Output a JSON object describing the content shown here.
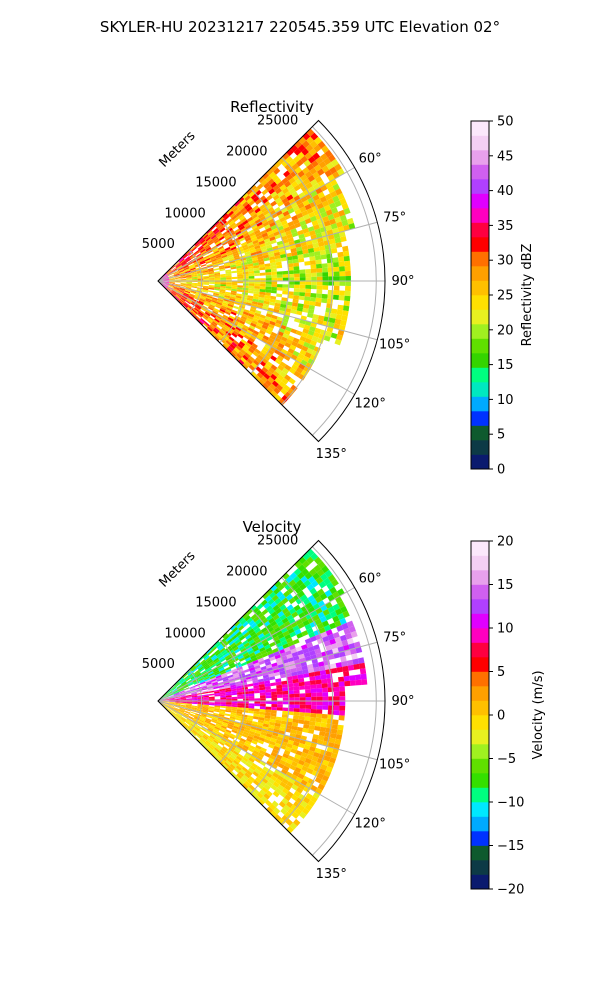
{
  "figure": {
    "suptitle": "SKYLER-HU  20231217  220545.359 UTC Elevation 02°"
  },
  "chart_data": [
    {
      "type": "heatmap",
      "title": "Reflectivity",
      "radial_label": "Meters",
      "range_ticks": [
        {
          "value": 5000,
          "label": "5000"
        },
        {
          "value": 10000,
          "label": "10000"
        },
        {
          "value": 15000,
          "label": "15000"
        },
        {
          "value": 20000,
          "label": "20000"
        },
        {
          "value": 25000,
          "label": "25000"
        }
      ],
      "range_max": 26000,
      "azimuth_range": [
        45,
        135
      ],
      "azimuth_ticks": [
        {
          "value": 60,
          "label": "60°"
        },
        {
          "value": 75,
          "label": "75°"
        },
        {
          "value": 90,
          "label": "90°"
        },
        {
          "value": 105,
          "label": "105°"
        },
        {
          "value": 120,
          "label": "120°"
        },
        {
          "value": 135,
          "label": "135°"
        }
      ],
      "colorbar": {
        "label": "Reflectivity dBZ",
        "vmin": 0,
        "vmax": 50,
        "ticks": [
          {
            "value": 0,
            "label": "0"
          },
          {
            "value": 5,
            "label": "5"
          },
          {
            "value": 10,
            "label": "10"
          },
          {
            "value": 15,
            "label": "15"
          },
          {
            "value": 20,
            "label": "20"
          },
          {
            "value": 25,
            "label": "25"
          },
          {
            "value": 30,
            "label": "30"
          },
          {
            "value": 35,
            "label": "35"
          },
          {
            "value": 40,
            "label": "40"
          },
          {
            "value": 45,
            "label": "45"
          },
          {
            "value": 50,
            "label": "50"
          }
        ],
        "colors": [
          "#0a1a6e",
          "#0c3a46",
          "#0e5a2e",
          "#0032ff",
          "#00aaff",
          "#00e8c0",
          "#00ff80",
          "#34d400",
          "#60e000",
          "#a0f020",
          "#e8f020",
          "#ffe000",
          "#ffc000",
          "#ffa000",
          "#ff7000",
          "#ff0000",
          "#ff0040",
          "#ff00c0",
          "#e000ff",
          "#b040ff",
          "#d060f0",
          "#e8a0ec",
          "#f4d0f4",
          "#fbe8fb"
        ]
      },
      "grid": true
    },
    {
      "type": "heatmap",
      "title": "Velocity",
      "radial_label": "Meters",
      "range_ticks": [
        {
          "value": 5000,
          "label": "5000"
        },
        {
          "value": 10000,
          "label": "10000"
        },
        {
          "value": 15000,
          "label": "15000"
        },
        {
          "value": 20000,
          "label": "20000"
        },
        {
          "value": 25000,
          "label": "25000"
        }
      ],
      "range_max": 26000,
      "azimuth_range": [
        45,
        135
      ],
      "azimuth_ticks": [
        {
          "value": 60,
          "label": "60°"
        },
        {
          "value": 75,
          "label": "75°"
        },
        {
          "value": 90,
          "label": "90°"
        },
        {
          "value": 105,
          "label": "105°"
        },
        {
          "value": 120,
          "label": "120°"
        },
        {
          "value": 135,
          "label": "135°"
        }
      ],
      "colorbar": {
        "label": "Velocity (m/s)",
        "vmin": -20,
        "vmax": 20,
        "ticks": [
          {
            "value": -20,
            "label": "−20"
          },
          {
            "value": -15,
            "label": "−15"
          },
          {
            "value": -10,
            "label": "−10"
          },
          {
            "value": -5,
            "label": "−5"
          },
          {
            "value": 0,
            "label": "0"
          },
          {
            "value": 5,
            "label": "5"
          },
          {
            "value": 10,
            "label": "10"
          },
          {
            "value": 15,
            "label": "15"
          },
          {
            "value": 20,
            "label": "20"
          }
        ],
        "colors": [
          "#0a1a6e",
          "#0c3a46",
          "#0e5a2e",
          "#0032ff",
          "#00aaff",
          "#00e8ff",
          "#00ff80",
          "#34e000",
          "#60e000",
          "#a0f020",
          "#e8f020",
          "#ffe000",
          "#ffc000",
          "#ffa000",
          "#ff7000",
          "#ff0000",
          "#ff0040",
          "#ff00c0",
          "#e000ff",
          "#b040ff",
          "#d060f0",
          "#e8a0ec",
          "#f4d0f4",
          "#fbe8fb"
        ]
      },
      "grid": true
    }
  ]
}
